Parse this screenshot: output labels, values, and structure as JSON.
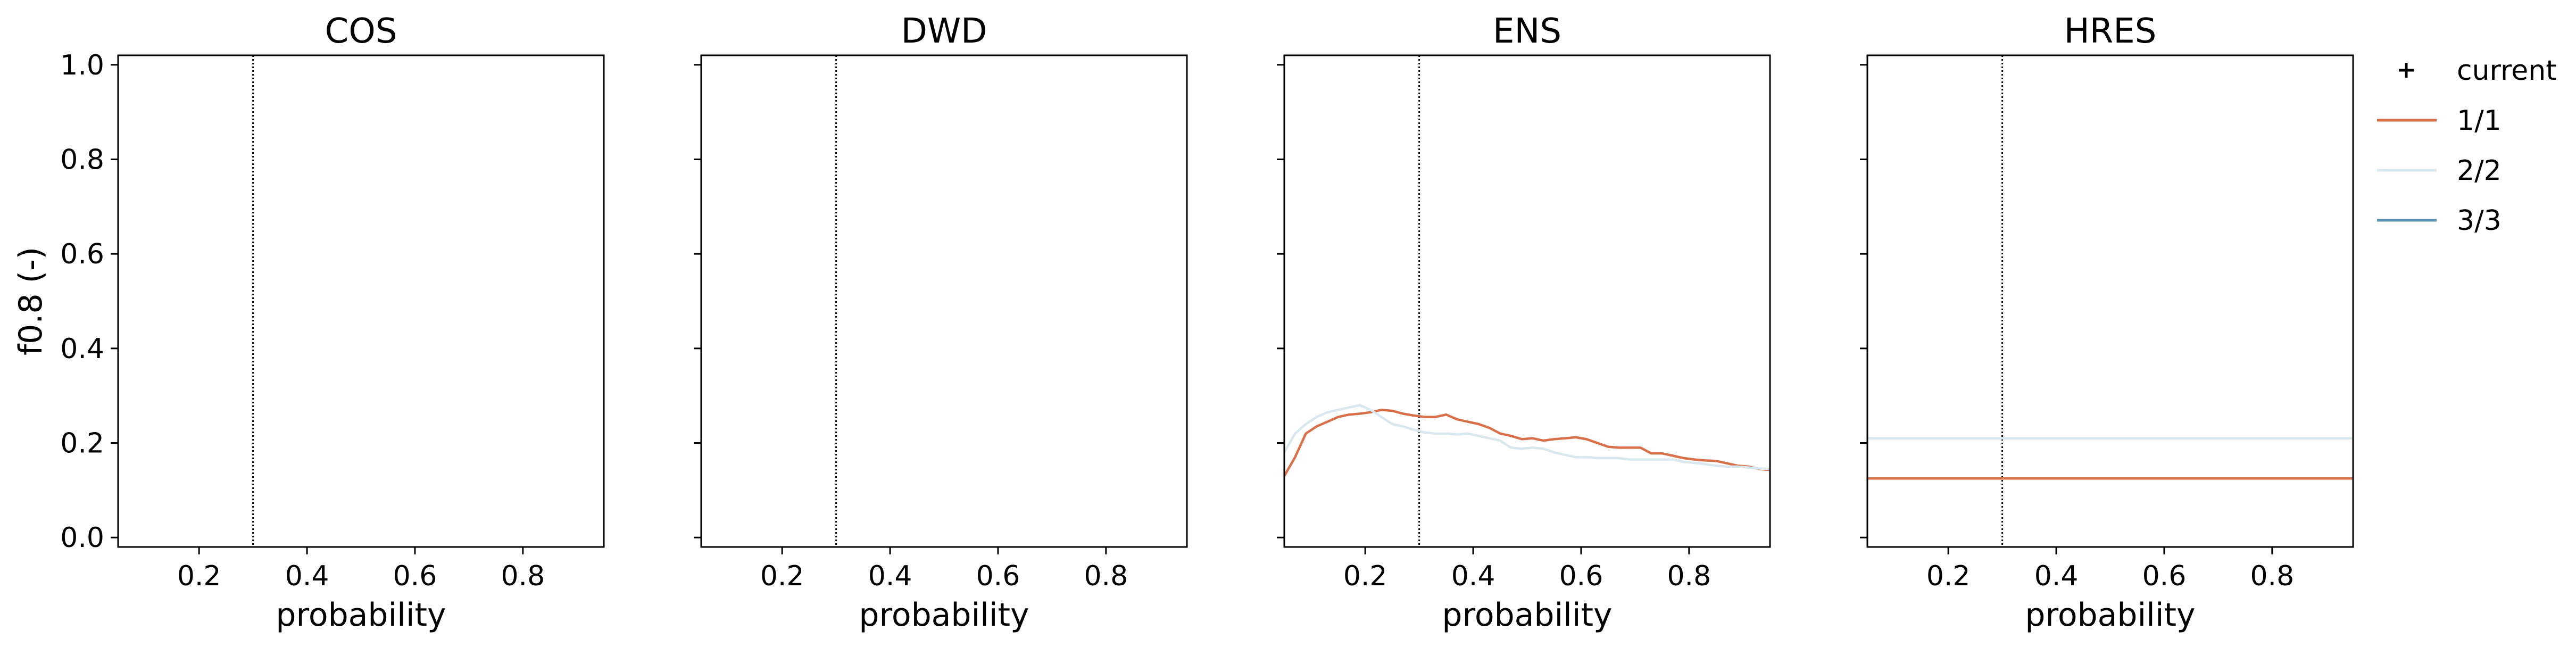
{
  "chart_data": [
    {
      "type": "line",
      "title": "COS",
      "xlabel": "probability",
      "ylabel": "f0.8 (-)",
      "xlim": [
        0.05,
        0.95
      ],
      "ylim": [
        -0.02,
        1.02
      ],
      "xticks": [
        "0.2",
        "0.4",
        "0.6",
        "0.8"
      ],
      "yticks": [
        "0.0",
        "0.2",
        "0.4",
        "0.6",
        "0.8",
        "1.0"
      ],
      "current_x": 0.3,
      "series": []
    },
    {
      "type": "line",
      "title": "DWD",
      "xlabel": "probability",
      "xlim": [
        0.05,
        0.95
      ],
      "ylim": [
        -0.02,
        1.02
      ],
      "xticks": [
        "0.2",
        "0.4",
        "0.6",
        "0.8"
      ],
      "current_x": 0.3,
      "series": []
    },
    {
      "type": "line",
      "title": "ENS",
      "xlabel": "probability",
      "xlim": [
        0.05,
        0.95
      ],
      "ylim": [
        -0.02,
        1.02
      ],
      "xticks": [
        "0.2",
        "0.4",
        "0.6",
        "0.8"
      ],
      "current_x": 0.3,
      "series": [
        {
          "name": "1/1",
          "color": "#d9704a",
          "x": [
            0.05,
            0.07,
            0.09,
            0.11,
            0.13,
            0.15,
            0.17,
            0.19,
            0.21,
            0.23,
            0.25,
            0.27,
            0.29,
            0.31,
            0.33,
            0.35,
            0.37,
            0.39,
            0.41,
            0.43,
            0.45,
            0.47,
            0.49,
            0.51,
            0.53,
            0.55,
            0.57,
            0.59,
            0.61,
            0.63,
            0.65,
            0.67,
            0.69,
            0.71,
            0.73,
            0.75,
            0.77,
            0.79,
            0.81,
            0.83,
            0.85,
            0.87,
            0.89,
            0.91,
            0.93,
            0.95
          ],
          "y": [
            0.13,
            0.17,
            0.22,
            0.235,
            0.245,
            0.255,
            0.26,
            0.262,
            0.265,
            0.27,
            0.268,
            0.262,
            0.258,
            0.255,
            0.255,
            0.26,
            0.25,
            0.245,
            0.24,
            0.232,
            0.22,
            0.215,
            0.208,
            0.21,
            0.205,
            0.208,
            0.21,
            0.212,
            0.208,
            0.2,
            0.192,
            0.19,
            0.19,
            0.19,
            0.178,
            0.178,
            0.173,
            0.168,
            0.165,
            0.163,
            0.162,
            0.157,
            0.152,
            0.15,
            0.145,
            0.143
          ]
        },
        {
          "name": "2/2",
          "color": "#d9e8ef",
          "x": [
            0.05,
            0.07,
            0.09,
            0.11,
            0.13,
            0.15,
            0.17,
            0.19,
            0.21,
            0.23,
            0.25,
            0.27,
            0.29,
            0.31,
            0.33,
            0.35,
            0.37,
            0.39,
            0.41,
            0.43,
            0.45,
            0.47,
            0.49,
            0.51,
            0.53,
            0.55,
            0.57,
            0.59,
            0.61,
            0.63,
            0.65,
            0.67,
            0.69,
            0.71,
            0.73,
            0.75,
            0.77,
            0.79,
            0.81,
            0.83,
            0.85,
            0.87,
            0.89,
            0.91,
            0.93,
            0.95
          ],
          "y": [
            0.18,
            0.22,
            0.24,
            0.255,
            0.265,
            0.27,
            0.275,
            0.28,
            0.27,
            0.255,
            0.24,
            0.235,
            0.228,
            0.222,
            0.22,
            0.22,
            0.218,
            0.22,
            0.215,
            0.21,
            0.205,
            0.19,
            0.188,
            0.19,
            0.188,
            0.18,
            0.175,
            0.17,
            0.17,
            0.168,
            0.168,
            0.168,
            0.165,
            0.165,
            0.165,
            0.165,
            0.165,
            0.16,
            0.158,
            0.155,
            0.152,
            0.15,
            0.15,
            0.148,
            0.146,
            0.145
          ]
        }
      ]
    },
    {
      "type": "line",
      "title": "HRES",
      "xlabel": "probability",
      "xlim": [
        0.05,
        0.95
      ],
      "ylim": [
        -0.02,
        1.02
      ],
      "xticks": [
        "0.2",
        "0.4",
        "0.6",
        "0.8"
      ],
      "current_x": 0.3,
      "series": [
        {
          "name": "2/2",
          "color": "#d9e8ef",
          "x": [
            0.05,
            0.95
          ],
          "y": [
            0.21,
            0.21
          ]
        },
        {
          "name": "1/1",
          "color": "#d9704a",
          "x": [
            0.05,
            0.95
          ],
          "y": [
            0.125,
            0.125
          ]
        }
      ]
    }
  ],
  "legend": {
    "placement": "right",
    "entries": [
      {
        "label": "current",
        "marker": "plus",
        "color": "#000000"
      },
      {
        "label": "1/1",
        "marker": "line",
        "color": "#d9704a"
      },
      {
        "label": "2/2",
        "marker": "line",
        "color": "#d9e8ef"
      },
      {
        "label": "3/3",
        "marker": "line",
        "color": "#5a94b5"
      }
    ]
  }
}
